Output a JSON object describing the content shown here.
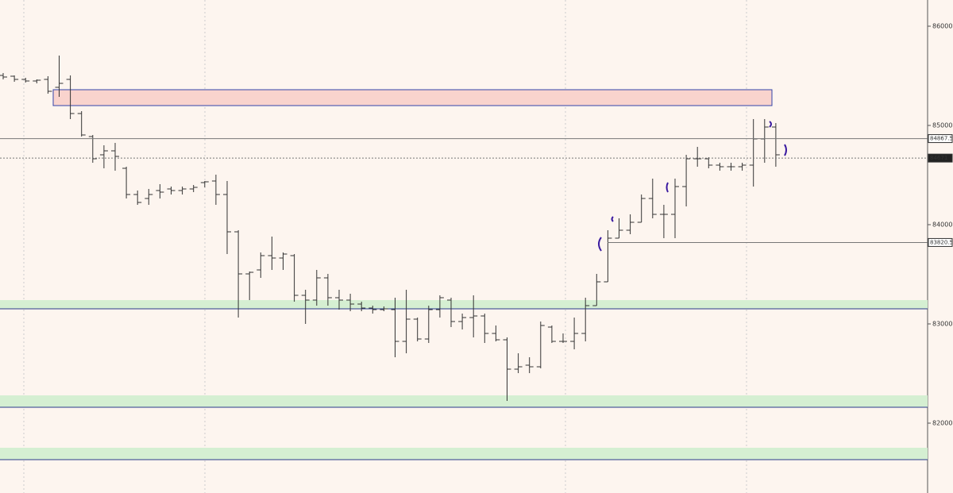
{
  "chart_data": {
    "type": "ohlc",
    "ylim": [
      81296,
      86264
    ],
    "yticks": [
      86000,
      85000,
      84000,
      83000,
      82000
    ],
    "color": "#333333",
    "open": [
      85504,
      85496,
      85464,
      85448,
      85464,
      85384,
      85464,
      85120,
      84888,
      84704,
      84744,
      84568,
      84304,
      84264,
      84344,
      84360,
      84344,
      84360,
      84424,
      84440,
      84304,
      83928,
      83504,
      83544,
      83688,
      83664,
      83688,
      83288,
      83240,
      83464,
      83264,
      83240,
      83200,
      83160,
      83144,
      83144,
      82824,
      83048,
      82848,
      83144,
      83240,
      83024,
      83064,
      83080,
      82904,
      82840,
      82544,
      82584,
      82568,
      82968,
      82824,
      82824,
      82904,
      83184,
      83424,
      83864,
      83944,
      84024,
      84264,
      84104,
      84104,
      84384,
      84664,
      84664,
      84600,
      84584,
      84584,
      84600,
      84864,
      84984
    ],
    "high": [
      85528,
      85504,
      85480,
      85464,
      85496,
      85704,
      85504,
      85144,
      84904,
      84800,
      84824,
      84584,
      84344,
      84360,
      84408,
      84384,
      84384,
      84400,
      84440,
      84504,
      84440,
      83944,
      83528,
      83720,
      83880,
      83720,
      83704,
      83344,
      83544,
      83504,
      83344,
      83304,
      83224,
      83184,
      83176,
      83264,
      83344,
      83064,
      83184,
      83288,
      83264,
      83104,
      83288,
      83104,
      82984,
      82864,
      82704,
      82664,
      83024,
      82984,
      82904,
      83064,
      83264,
      83504,
      83944,
      84064,
      84104,
      84304,
      84464,
      84200,
      84464,
      84704,
      84784,
      84680,
      84624,
      84624,
      84624,
      85064,
      85064,
      85024
    ],
    "low": [
      85464,
      85440,
      85432,
      85424,
      85320,
      85288,
      85064,
      84888,
      84624,
      84568,
      84544,
      84264,
      84200,
      84200,
      84264,
      84304,
      84304,
      84328,
      84376,
      84200,
      83704,
      83064,
      83240,
      83464,
      83544,
      83544,
      83224,
      83000,
      83184,
      83184,
      83144,
      83128,
      83128,
      83104,
      83128,
      82664,
      82704,
      82824,
      82808,
      83064,
      82968,
      82944,
      82864,
      82808,
      82824,
      82224,
      82504,
      82504,
      82552,
      82808,
      82808,
      82744,
      82824,
      83184,
      83424,
      83864,
      83904,
      84024,
      84064,
      83864,
      83864,
      84184,
      84584,
      84568,
      84544,
      84544,
      84544,
      84384,
      84624,
      84584
    ],
    "close": [
      85488,
      85464,
      85448,
      85456,
      85344,
      85424,
      85120,
      84904,
      84664,
      84744,
      84688,
      84304,
      84224,
      84304,
      84328,
      84344,
      84360,
      84376,
      84432,
      84304,
      83928,
      83504,
      83520,
      83688,
      83664,
      83704,
      83288,
      83240,
      83464,
      83264,
      83240,
      83200,
      83160,
      83144,
      83152,
      82824,
      83048,
      82848,
      83144,
      83264,
      83024,
      83064,
      83080,
      82904,
      82840,
      82544,
      82568,
      82568,
      82984,
      82824,
      82824,
      82904,
      83184,
      83424,
      83864,
      83944,
      84024,
      84264,
      84104,
      84104,
      84384,
      84664,
      84664,
      84600,
      84584,
      84584,
      84600,
      84864,
      84984,
      84704
    ],
    "supply_zones": [
      {
        "low": 85200,
        "high": 85360,
        "color": "#f9d3cd"
      }
    ],
    "demand_zones": [
      {
        "low": 83152,
        "high": 83240,
        "color": "#d5efd2"
      },
      {
        "low": 82160,
        "high": 82280,
        "color": "#d5efd2"
      },
      {
        "low": 81632,
        "high": 81752,
        "color": "#d5efd2"
      }
    ],
    "price_lines": [
      84867.5,
      84671,
      83820.5
    ]
  }
}
